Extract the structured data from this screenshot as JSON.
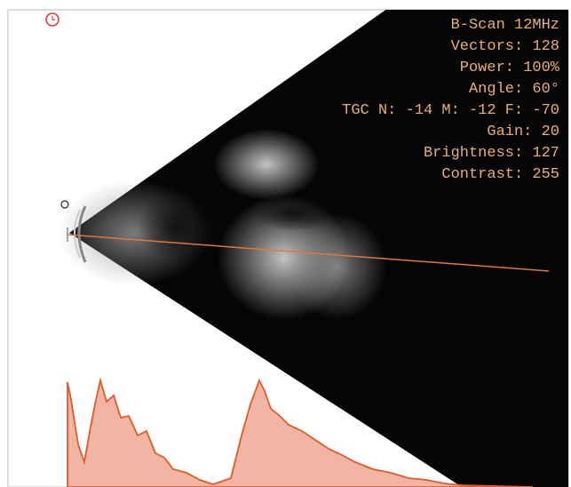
{
  "overlay": {
    "lines": [
      "B-Scan 12MHz",
      "Vectors: 128",
      "Power: 100%",
      "Angle: 60°",
      "TGC N: -14 M: -12 F: -70",
      "Gain: 20",
      "Brightness: 127",
      "Contrast: 255"
    ]
  }
}
